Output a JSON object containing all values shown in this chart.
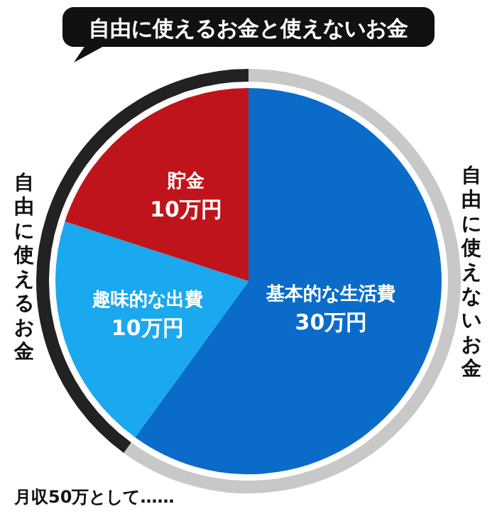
{
  "chart_data": {
    "type": "pie",
    "title": "自由に使えるお金と使えないお金",
    "categories": [
      "基本的な生活費",
      "趣味的な出費",
      "貯金"
    ],
    "values": [
      30,
      10,
      10
    ],
    "colors": [
      "#0a6cc8",
      "#1aa8ee",
      "#c0141c"
    ],
    "value_labels": [
      "30万円",
      "10万円",
      "10万円"
    ],
    "annotations": [
      "自由に使えないお金",
      "自由に使えるお金",
      "月収50万として……"
    ]
  }
}
